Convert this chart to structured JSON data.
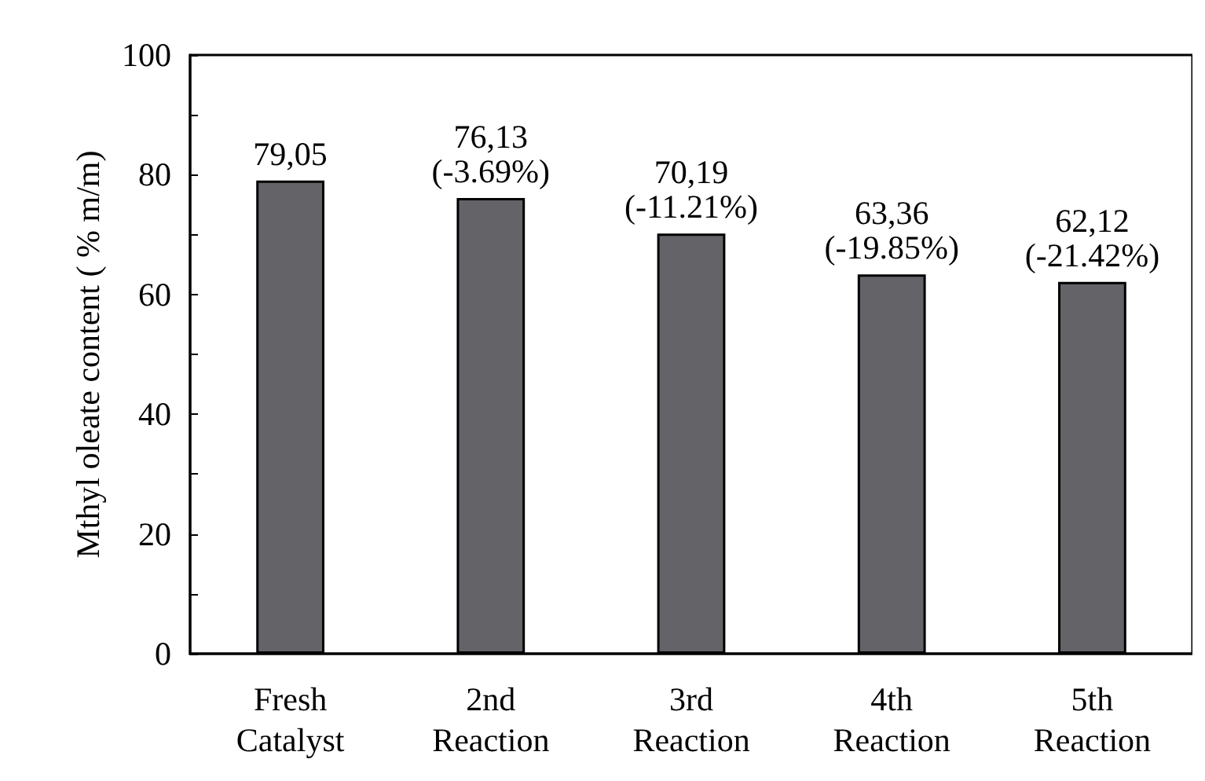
{
  "chart_data": {
    "type": "bar",
    "ylabel": "Mthyl oleate content ( % m/m)",
    "categories": [
      "Fresh\nCatalyst",
      "2nd\nReaction",
      "3rd\nReaction",
      "4th\nReaction",
      "5th\nReaction"
    ],
    "values": [
      79.05,
      76.13,
      70.19,
      63.36,
      62.12
    ],
    "value_labels": [
      "79,05",
      "76,13\n(-3.69%)",
      "70,19\n(-11.21%)",
      "63,36\n(-19.85%)",
      "62,12\n(-21.42%)"
    ],
    "color": "#646468",
    "ylim": [
      0,
      100
    ],
    "yticks": [
      0,
      {
        "value": 10,
        "label": null
      },
      20,
      {
        "value": 30,
        "label": null
      },
      40,
      {
        "value": 50,
        "label": null
      },
      60,
      {
        "value": 70,
        "label": null
      },
      80,
      {
        "value": 90,
        "label": null
      },
      100
    ],
    "grid": false
  }
}
